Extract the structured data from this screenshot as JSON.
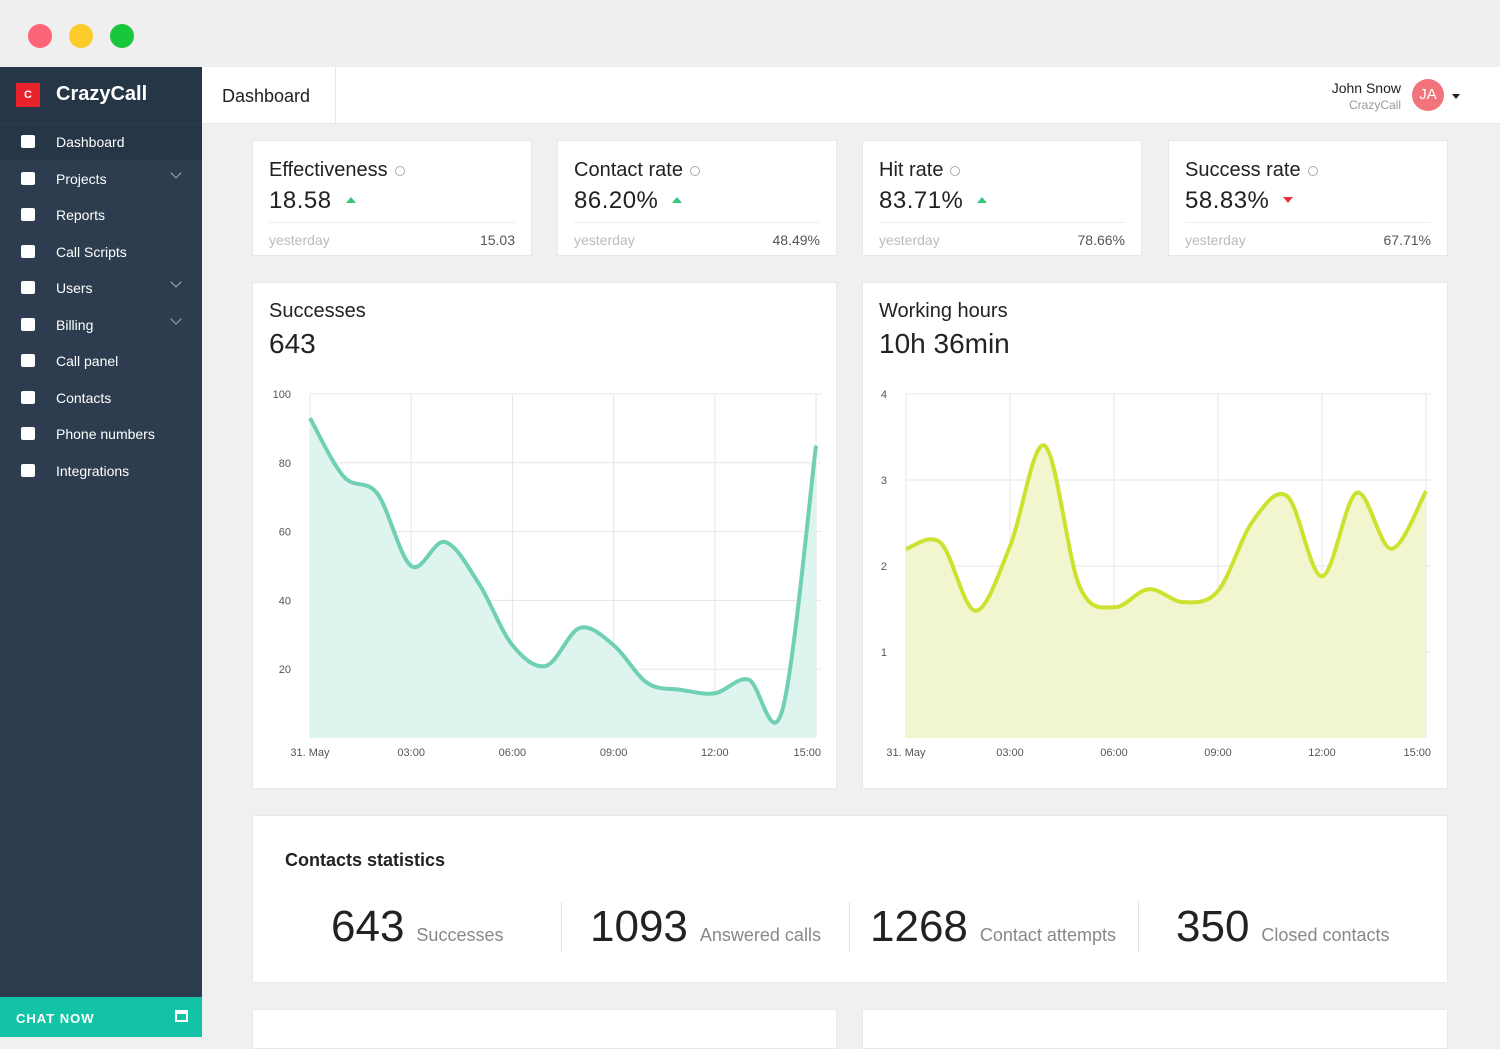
{
  "app": {
    "brand_icon": "C",
    "brand": "CrazyCall"
  },
  "sidebar": {
    "items": [
      {
        "label": "Dashboard",
        "active": true,
        "submenu": false
      },
      {
        "label": "Projects",
        "active": false,
        "submenu": true
      },
      {
        "label": "Reports",
        "active": false,
        "submenu": false
      },
      {
        "label": "Call Scripts",
        "active": false,
        "submenu": false
      },
      {
        "label": "Users",
        "active": false,
        "submenu": true
      },
      {
        "label": "Billing",
        "active": false,
        "submenu": true
      },
      {
        "label": "Call panel",
        "active": false,
        "submenu": false
      },
      {
        "label": "Contacts",
        "active": false,
        "submenu": false
      },
      {
        "label": "Phone numbers",
        "active": false,
        "submenu": false
      },
      {
        "label": "Integrations",
        "active": false,
        "submenu": false
      }
    ],
    "chat": "CHAT NOW"
  },
  "header": {
    "title": "Dashboard",
    "user_name": "John Snow",
    "user_org": "CrazyCall",
    "avatar": "JA"
  },
  "kpis": [
    {
      "title": "Effectiveness",
      "value": "18.58",
      "trend": "up",
      "prev_label": "yesterday",
      "prev": "15.03"
    },
    {
      "title": "Contact rate",
      "value": "86.20%",
      "trend": "up",
      "prev_label": "yesterday",
      "prev": "48.49%"
    },
    {
      "title": "Hit rate",
      "value": "83.71%",
      "trend": "up",
      "prev_label": "yesterday",
      "prev": "78.66%"
    },
    {
      "title": "Success rate",
      "value": "58.83%",
      "trend": "down",
      "prev_label": "yesterday",
      "prev": "67.71%"
    }
  ],
  "chart_data": [
    {
      "type": "area",
      "title": "Successes",
      "subtitle": "643",
      "color": "#6fd0b3",
      "fill": "#def4ee",
      "x": [
        0,
        1,
        2,
        3,
        4,
        5,
        6,
        7,
        8,
        9,
        10,
        11,
        12,
        13,
        14,
        15
      ],
      "values": [
        93,
        76,
        71,
        50,
        57,
        45,
        27,
        21,
        32,
        27,
        16,
        14,
        13,
        17,
        8,
        85
      ],
      "xlim": [
        0,
        15
      ],
      "ylim": [
        0,
        100
      ],
      "xticks": [
        {
          "value": 0,
          "label": "31. May"
        },
        {
          "value": 3,
          "label": "03:00"
        },
        {
          "value": 6,
          "label": "06:00"
        },
        {
          "value": 9,
          "label": "09:00"
        },
        {
          "value": 12,
          "label": "12:00"
        },
        {
          "value": 15,
          "label": "15:00"
        }
      ],
      "yticks": [
        20,
        40,
        60,
        80,
        100
      ],
      "grid": true
    },
    {
      "type": "area",
      "title": "Working hours",
      "subtitle": "10h 36min",
      "color": "#cde12f",
      "fill": "#f2f6cf",
      "x": [
        0,
        1,
        2,
        3,
        4,
        5,
        6,
        7,
        8,
        9,
        10,
        11,
        12,
        13,
        14,
        15
      ],
      "values": [
        2.2,
        2.27,
        1.48,
        2.23,
        3.4,
        1.77,
        1.52,
        1.73,
        1.58,
        1.71,
        2.52,
        2.81,
        1.88,
        2.85,
        2.2,
        2.87
      ],
      "xlim": [
        0,
        15
      ],
      "ylim": [
        0,
        4
      ],
      "xticks": [
        {
          "value": 0,
          "label": "31. May"
        },
        {
          "value": 3,
          "label": "03:00"
        },
        {
          "value": 6,
          "label": "06:00"
        },
        {
          "value": 9,
          "label": "09:00"
        },
        {
          "value": 12,
          "label": "12:00"
        },
        {
          "value": 15,
          "label": "15:00"
        }
      ],
      "yticks": [
        1,
        2,
        3,
        4
      ],
      "grid": true
    }
  ],
  "stats": {
    "title": "Contacts statistics",
    "items": [
      {
        "value": "643",
        "label": "Successes"
      },
      {
        "value": "1093",
        "label": "Answered calls"
      },
      {
        "value": "1268",
        "label": "Contact attempts"
      },
      {
        "value": "350",
        "label": "Closed contacts"
      }
    ]
  }
}
